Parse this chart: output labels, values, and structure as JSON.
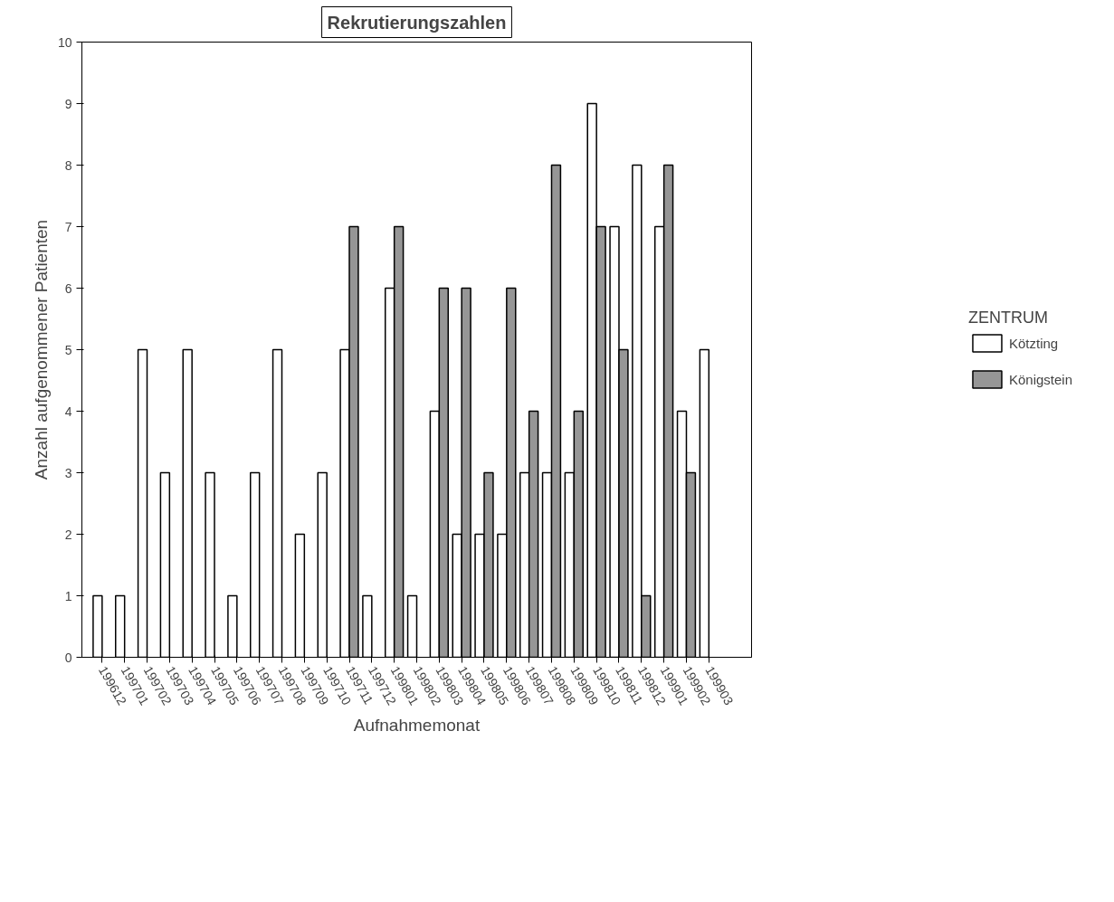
{
  "chart_data": {
    "type": "bar",
    "title": "Rekrutierungszahlen",
    "xlabel": "Aufnahmemonat",
    "ylabel": "Anzahl aufgenommener Patienten",
    "legend_title": "ZENTRUM",
    "categories": [
      "199612",
      "199701",
      "199702",
      "199703",
      "199704",
      "199705",
      "199706",
      "199707",
      "199708",
      "199709",
      "199710",
      "199711",
      "199712",
      "199801",
      "199802",
      "199803",
      "199804",
      "199805",
      "199806",
      "199807",
      "199808",
      "199809",
      "199810",
      "199811",
      "199812",
      "199901",
      "199902",
      "199903"
    ],
    "series": [
      {
        "name": "Kötzting",
        "color": "#ffffff",
        "values": [
          1,
          1,
          5,
          3,
          5,
          3,
          1,
          3,
          5,
          2,
          3,
          5,
          1,
          6,
          1,
          4,
          2,
          2,
          2,
          3,
          3,
          3,
          9,
          7,
          8,
          7,
          4,
          5
        ]
      },
      {
        "name": "Königstein",
        "color": "#969696",
        "values": [
          null,
          null,
          null,
          null,
          null,
          null,
          null,
          null,
          null,
          null,
          null,
          7,
          null,
          7,
          null,
          6,
          6,
          3,
          6,
          4,
          8,
          4,
          7,
          5,
          1,
          8,
          3,
          null
        ]
      }
    ],
    "ylim": [
      0,
      10
    ],
    "yticks": [
      0,
      1,
      2,
      3,
      4,
      5,
      6,
      7,
      8,
      9,
      10
    ],
    "grid": false,
    "legend": "right"
  }
}
